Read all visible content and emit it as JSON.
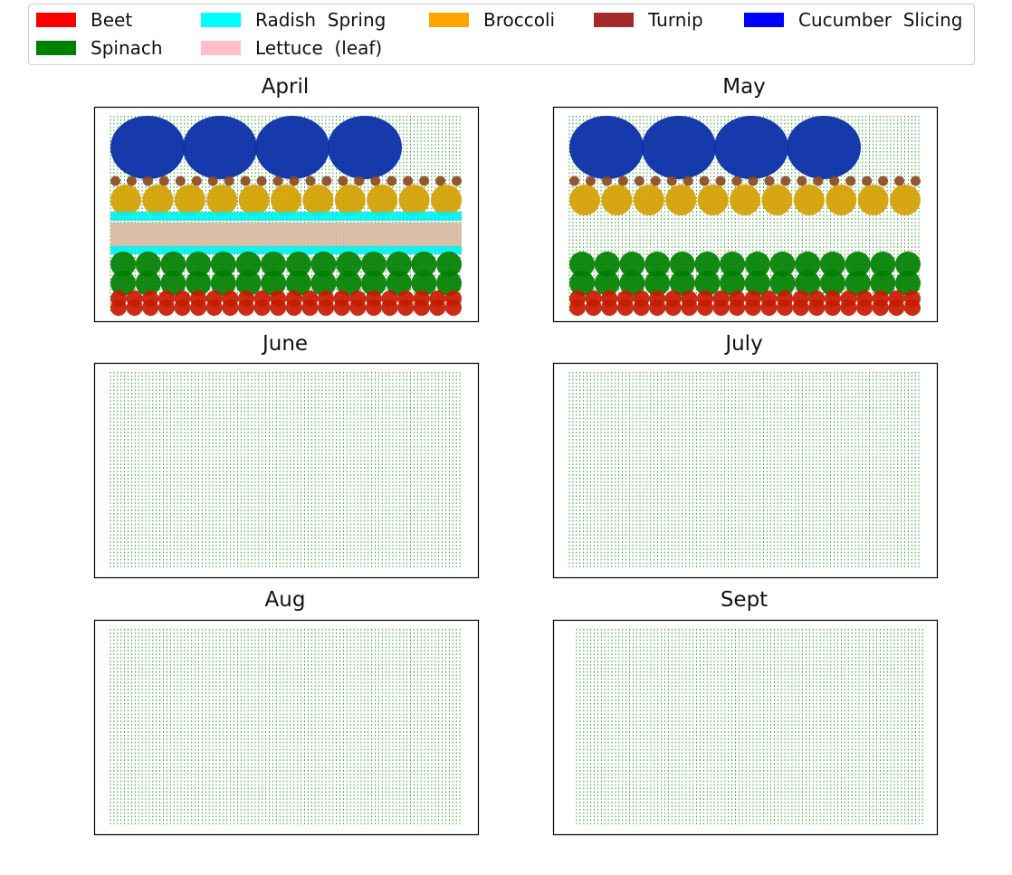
{
  "legend": {
    "items": [
      {
        "label": "Beet",
        "color": "#ff0000"
      },
      {
        "label": "Spinach",
        "color": "#008000"
      },
      {
        "label": "Radish  Spring",
        "color": "#00ffff"
      },
      {
        "label": "Lettuce  (leaf)",
        "color": "#ffc0cb"
      },
      {
        "label": "Broccoli",
        "color": "#ffa500"
      },
      {
        "label": "Turnip",
        "color": "#a52a2a"
      },
      {
        "label": "Cucumber  Slicing",
        "color": "#0000ff"
      }
    ]
  },
  "chart_data": [
    {
      "type": "scatter",
      "title": "April",
      "grid": "green dot grid (garden bed)",
      "plantings": [
        {
          "crop": "Cucumber  Slicing",
          "rows": 1,
          "count": 4
        },
        {
          "crop": "Turnip",
          "rows": 1,
          "count": 22
        },
        {
          "crop": "Broccoli",
          "rows": 1,
          "count": 11
        },
        {
          "crop": "Radish  Spring",
          "rows": 2,
          "count": 22
        },
        {
          "crop": "Lettuce  (leaf)",
          "rows": 1,
          "count": 22
        },
        {
          "crop": "Spinach",
          "rows": 2,
          "count": 14
        },
        {
          "crop": "Beet",
          "rows": 2,
          "count": 22
        }
      ]
    },
    {
      "type": "scatter",
      "title": "May",
      "grid": "green dot grid (garden bed)",
      "plantings": [
        {
          "crop": "Cucumber  Slicing",
          "rows": 1,
          "count": 4
        },
        {
          "crop": "Turnip",
          "rows": 1,
          "count": 22
        },
        {
          "crop": "Broccoli",
          "rows": 1,
          "count": 11
        },
        {
          "crop": "Spinach",
          "rows": 2,
          "count": 14
        },
        {
          "crop": "Beet",
          "rows": 2,
          "count": 22
        }
      ]
    },
    {
      "type": "scatter",
      "title": "June",
      "grid": "green dot grid (garden bed)",
      "plantings": []
    },
    {
      "type": "scatter",
      "title": "July",
      "grid": "green dot grid (garden bed)",
      "plantings": []
    },
    {
      "type": "scatter",
      "title": "Aug",
      "grid": "green dot grid (garden bed)",
      "plantings": []
    },
    {
      "type": "scatter",
      "title": "Sept",
      "grid": "green dot grid (garden bed)",
      "plantings": []
    }
  ]
}
